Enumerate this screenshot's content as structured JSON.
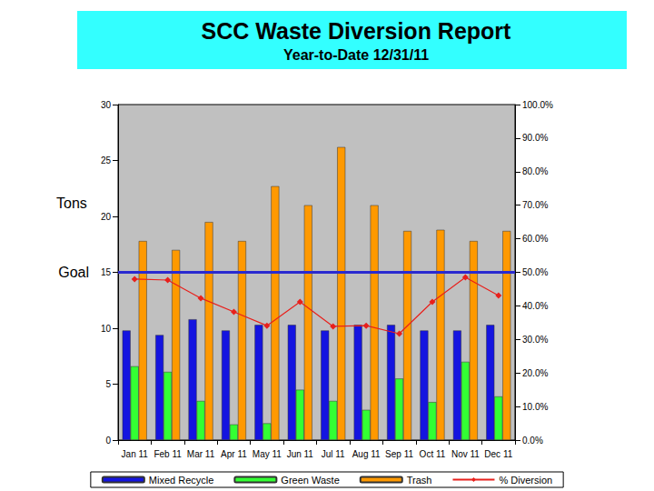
{
  "chart_data": {
    "type": "bar",
    "title": "SCC Waste Diversion Report",
    "subtitle": "Year-to-Date 12/31/11",
    "y_label": "Tons",
    "categories": [
      "Jan 11",
      "Feb 11",
      "Mar 11",
      "Apr 11",
      "May 11",
      "Jun 11",
      "Jul 11",
      "Aug 11",
      "Sep 11",
      "Oct 11",
      "Nov 11",
      "Dec 11"
    ],
    "series": [
      {
        "name": "Mixed Recycle",
        "color": "#1414e0",
        "values": [
          9.8,
          9.4,
          10.8,
          9.8,
          10.3,
          10.3,
          9.8,
          10.3,
          10.3,
          9.8,
          9.8,
          10.3
        ]
      },
      {
        "name": "Green Waste",
        "color": "#33ff33",
        "values": [
          6.6,
          6.1,
          3.5,
          1.4,
          1.5,
          4.5,
          3.5,
          2.7,
          5.5,
          3.4,
          7.0,
          3.9
        ]
      },
      {
        "name": "Trash",
        "color": "#ff9900",
        "values": [
          17.8,
          17.0,
          19.5,
          17.8,
          22.7,
          21.0,
          26.2,
          21.0,
          18.7,
          18.8,
          17.8,
          18.7
        ]
      },
      {
        "name": "% Diversion",
        "type": "line",
        "axis": "y2",
        "color": "#e8201c",
        "marker": "diamond",
        "values": [
          48.0,
          47.7,
          42.3,
          38.2,
          34.1,
          41.2,
          33.9,
          34.1,
          31.7,
          41.2,
          48.5,
          43.1
        ]
      }
    ],
    "ylim": [
      0,
      30
    ],
    "yticks": [
      0,
      5,
      10,
      15,
      20,
      25,
      30
    ],
    "y2lim": [
      0,
      100
    ],
    "y2ticks": [
      {
        "value": 0,
        "label": "0.0%"
      },
      {
        "value": 10,
        "label": "10.0%"
      },
      {
        "value": 20,
        "label": "20.0%"
      },
      {
        "value": 30,
        "label": "30.0%"
      },
      {
        "value": 40,
        "label": "40.0%"
      },
      {
        "value": 50,
        "label": "50.0%"
      },
      {
        "value": 60,
        "label": "60.0%"
      },
      {
        "value": 70,
        "label": "70.0%"
      },
      {
        "value": 80,
        "label": "80.0%"
      },
      {
        "value": 90,
        "label": "90.0%"
      },
      {
        "value": 100,
        "label": "100.0%"
      }
    ],
    "grid": false,
    "legend": "bottom",
    "goal": {
      "label": "Goal",
      "value": 15,
      "color": "#2a2ad0"
    }
  }
}
